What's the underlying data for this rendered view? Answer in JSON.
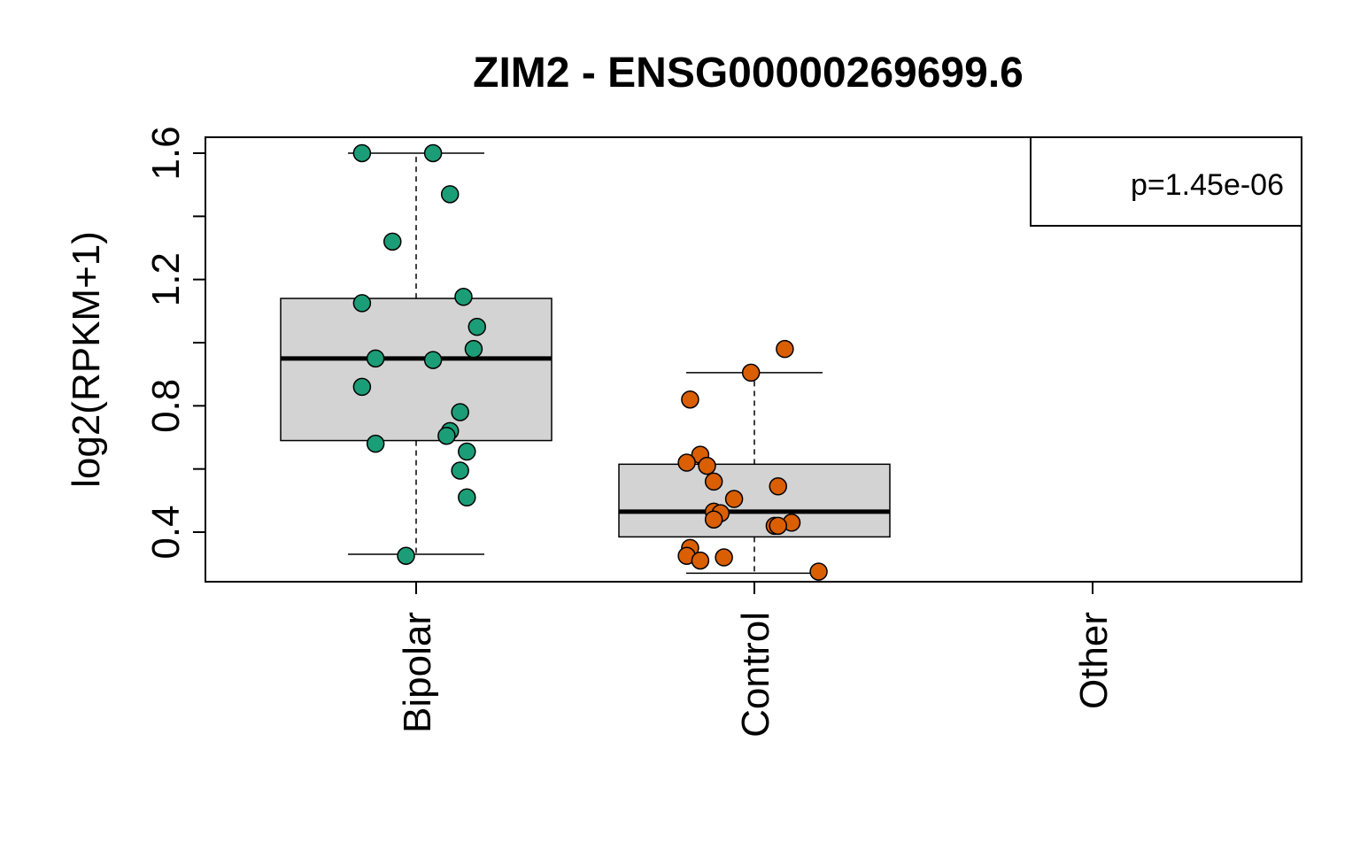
{
  "chart_data": {
    "type": "box",
    "title": "ZIM2 - ENSG00000269699.6",
    "xlabel": "",
    "ylabel": "log2(RPKM+1)",
    "categories": [
      "Bipolar",
      "Control",
      "Other"
    ],
    "yticks": [
      "0.4",
      "0.8",
      "1.2",
      "1.6"
    ],
    "ylim": [
      0.24,
      1.65
    ],
    "annotation": "p=1.45e-06",
    "box_fill": "#d3d3d3",
    "boxes": [
      {
        "category": "Bipolar",
        "min": 0.33,
        "q1": 0.69,
        "median": 0.95,
        "q3": 1.14,
        "max": 1.6
      },
      {
        "category": "Control",
        "min": 0.27,
        "q1": 0.385,
        "median": 0.465,
        "q3": 0.615,
        "max": 0.905
      }
    ],
    "series": [
      {
        "category": "Bipolar",
        "color": "#1b9e77",
        "points": [
          {
            "x": -0.16,
            "y": 1.6
          },
          {
            "x": 0.05,
            "y": 1.6
          },
          {
            "x": 0.1,
            "y": 1.47
          },
          {
            "x": -0.07,
            "y": 1.32
          },
          {
            "x": -0.16,
            "y": 1.125
          },
          {
            "x": 0.14,
            "y": 1.145
          },
          {
            "x": 0.18,
            "y": 1.05
          },
          {
            "x": 0.17,
            "y": 0.98
          },
          {
            "x": -0.12,
            "y": 0.95
          },
          {
            "x": 0.05,
            "y": 0.945
          },
          {
            "x": -0.16,
            "y": 0.86
          },
          {
            "x": 0.13,
            "y": 0.78
          },
          {
            "x": 0.1,
            "y": 0.72
          },
          {
            "x": 0.09,
            "y": 0.705
          },
          {
            "x": -0.12,
            "y": 0.68
          },
          {
            "x": 0.15,
            "y": 0.655
          },
          {
            "x": 0.13,
            "y": 0.595
          },
          {
            "x": 0.15,
            "y": 0.51
          },
          {
            "x": -0.03,
            "y": 0.325
          }
        ]
      },
      {
        "category": "Control",
        "color": "#d95f02",
        "points": [
          {
            "x": 0.09,
            "y": 0.98
          },
          {
            "x": -0.01,
            "y": 0.905
          },
          {
            "x": -0.19,
            "y": 0.82
          },
          {
            "x": -0.16,
            "y": 0.645
          },
          {
            "x": -0.2,
            "y": 0.62
          },
          {
            "x": -0.14,
            "y": 0.61
          },
          {
            "x": -0.12,
            "y": 0.56
          },
          {
            "x": 0.07,
            "y": 0.545
          },
          {
            "x": -0.06,
            "y": 0.505
          },
          {
            "x": -0.12,
            "y": 0.465
          },
          {
            "x": -0.1,
            "y": 0.46
          },
          {
            "x": -0.12,
            "y": 0.44
          },
          {
            "x": 0.11,
            "y": 0.43
          },
          {
            "x": 0.06,
            "y": 0.42
          },
          {
            "x": 0.07,
            "y": 0.42
          },
          {
            "x": -0.19,
            "y": 0.35
          },
          {
            "x": -0.2,
            "y": 0.325
          },
          {
            "x": -0.09,
            "y": 0.32
          },
          {
            "x": -0.16,
            "y": 0.31
          },
          {
            "x": 0.19,
            "y": 0.275
          }
        ]
      }
    ]
  }
}
